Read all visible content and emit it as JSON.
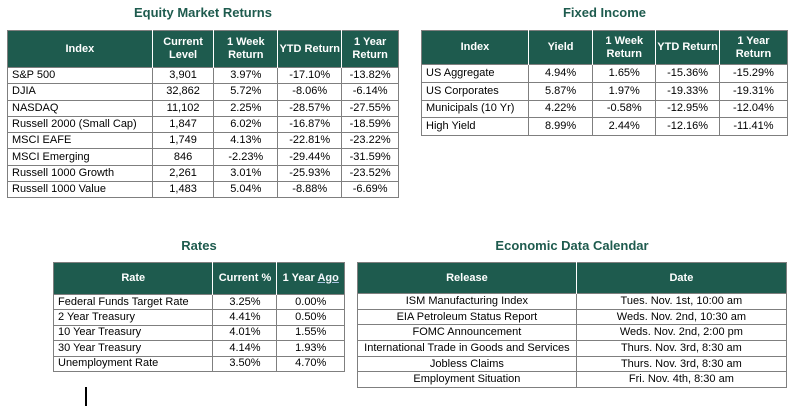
{
  "colors": {
    "accent_green": "#1E5B4E",
    "border_gray": "#7F7F7F",
    "header_text": "#FFFFFF",
    "link_underline": "#A9C4E3"
  },
  "equity": {
    "title": "Equity Market Returns",
    "headers": [
      "Index",
      "Current Level",
      "1 Week Return",
      "YTD Return",
      "1 Year Return"
    ],
    "rows": [
      [
        "S&P 500",
        "3,901",
        "3.97%",
        "-17.10%",
        "-13.82%"
      ],
      [
        "DJIA",
        "32,862",
        "5.72%",
        "-8.06%",
        "-6.14%"
      ],
      [
        "NASDAQ",
        "11,102",
        "2.25%",
        "-28.57%",
        "-27.55%"
      ],
      [
        "Russell 2000 (Small Cap)",
        "1,847",
        "6.02%",
        "-16.87%",
        "-18.59%"
      ],
      [
        "MSCI EAFE",
        "1,749",
        "4.13%",
        "-22.81%",
        "-23.22%"
      ],
      [
        "MSCI Emerging",
        "846",
        "-2.23%",
        "-29.44%",
        "-31.59%"
      ],
      [
        "Russell 1000 Growth",
        "2,261",
        "3.01%",
        "-25.93%",
        "-23.52%"
      ],
      [
        "Russell 1000 Value",
        "1,483",
        "5.04%",
        "-8.88%",
        "-6.69%"
      ]
    ]
  },
  "fixed_income": {
    "title": "Fixed Income",
    "headers": [
      "Index",
      "Yield",
      "1 Week Return",
      "YTD Return",
      "1 Year Return"
    ],
    "rows": [
      [
        "US Aggregate",
        "4.94%",
        "1.65%",
        "-15.36%",
        "-15.29%"
      ],
      [
        "US Corporates",
        "5.87%",
        "1.97%",
        "-19.33%",
        "-19.31%"
      ],
      [
        "Municipals (10 Yr)",
        "4.22%",
        "-0.58%",
        "-12.95%",
        "-12.04%"
      ],
      [
        "High Yield",
        "8.99%",
        "2.44%",
        "-12.16%",
        "-11.41%"
      ]
    ]
  },
  "rates": {
    "title": "Rates",
    "headers": [
      "Rate",
      "Current %",
      {
        "label": "1 Year Ago",
        "underline_word": "Ago"
      }
    ],
    "rows": [
      [
        "Federal Funds Target Rate",
        "3.25%",
        "0.00%"
      ],
      [
        "2 Year Treasury",
        "4.41%",
        "0.50%"
      ],
      [
        "10 Year Treasury",
        "4.01%",
        "1.55%"
      ],
      [
        "30 Year Treasury",
        "4.14%",
        "1.93%"
      ],
      [
        "Unemployment Rate",
        "3.50%",
        "4.70%"
      ]
    ]
  },
  "calendar": {
    "title": "Economic Data Calendar",
    "headers": [
      "Release",
      "Date"
    ],
    "rows": [
      [
        "ISM Manufacturing Index",
        "Tues. Nov. 1st, 10:00 am"
      ],
      [
        "EIA Petroleum Status Report",
        "Weds. Nov. 2nd, 10:30 am"
      ],
      [
        "FOMC Announcement",
        "Weds. Nov. 2nd, 2:00 pm"
      ],
      [
        "International Trade in Goods and Services",
        "Thurs. Nov. 3rd, 8:30 am"
      ],
      [
        "Jobless Claims",
        "Thurs. Nov. 3rd, 8:30 am"
      ],
      [
        "Employment Situation",
        "Fri. Nov. 4th, 8:30 am"
      ]
    ]
  }
}
